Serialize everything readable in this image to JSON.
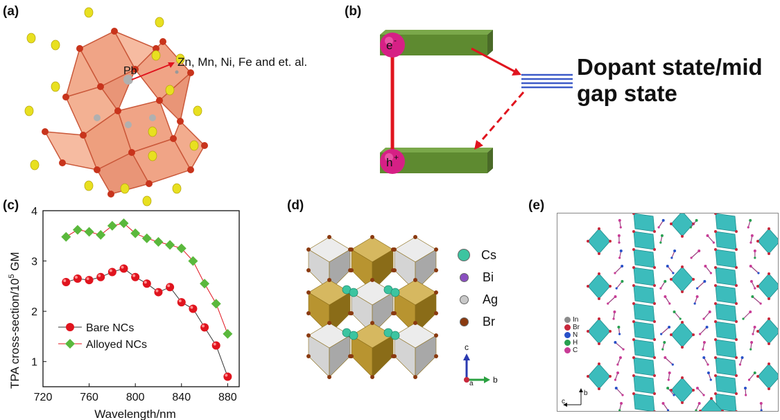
{
  "panels": {
    "a": {
      "label": "(a)",
      "pb_label": "Pb",
      "dopant_text": "Zn, Mn, Ni, Fe and et. al."
    },
    "b": {
      "label": "(b)",
      "electron": "e",
      "electron_sup": "-",
      "hole": "h",
      "hole_sup": "+",
      "dopant_line1": "Dopant state/mid",
      "dopant_line2": "gap state"
    },
    "c": {
      "label": "(c)"
    },
    "d": {
      "label": "(d)",
      "legend": [
        {
          "name": "Cs",
          "color": "#3cc4a0"
        },
        {
          "name": "Bi",
          "color": "#8a4fc0"
        },
        {
          "name": "Ag",
          "color": "#c8c8c8"
        },
        {
          "name": "Br",
          "color": "#8a3a10"
        }
      ],
      "axis_c": "c",
      "axis_b": "b",
      "axis_a": "a"
    },
    "e": {
      "label": "(e)",
      "legend": [
        {
          "name": "In",
          "color": "#8c8c8c"
        },
        {
          "name": "Br",
          "color": "#c8283c"
        },
        {
          "name": "N",
          "color": "#2850c8"
        },
        {
          "name": "H",
          "color": "#28a050"
        },
        {
          "name": "C",
          "color": "#c83c96"
        }
      ],
      "axis_b": "b",
      "axis_c": "c"
    }
  },
  "chart_data": {
    "type": "line",
    "xlabel": "Wavelength/nm",
    "ylabel": "TPA cross-section/10",
    "ylabel_sup": "5",
    "ylabel_unit": " GM",
    "xlim": [
      720,
      890
    ],
    "ylim": [
      0.5,
      4
    ],
    "xticks": [
      720,
      760,
      800,
      840,
      880
    ],
    "yticks": [
      1,
      2,
      3,
      4
    ],
    "legend_position": "lower-left",
    "series": [
      {
        "name": "Bare NCs",
        "marker": "circle",
        "color": "#e0141e",
        "line_color": "#333333",
        "x": [
          740,
          750,
          760,
          770,
          780,
          790,
          800,
          810,
          820,
          830,
          840,
          850,
          860,
          870,
          880
        ],
        "y": [
          2.58,
          2.65,
          2.62,
          2.68,
          2.78,
          2.85,
          2.68,
          2.55,
          2.38,
          2.48,
          2.18,
          2.05,
          1.68,
          1.32,
          0.7
        ]
      },
      {
        "name": "Alloyed NCs",
        "marker": "diamond",
        "color": "#5ab83c",
        "line_color": "#e0141e",
        "x": [
          740,
          750,
          760,
          770,
          780,
          790,
          800,
          810,
          820,
          830,
          840,
          850,
          860,
          870,
          880
        ],
        "y": [
          3.48,
          3.62,
          3.58,
          3.52,
          3.7,
          3.75,
          3.55,
          3.45,
          3.38,
          3.32,
          3.25,
          3.0,
          2.55,
          2.15,
          1.55
        ]
      }
    ]
  }
}
